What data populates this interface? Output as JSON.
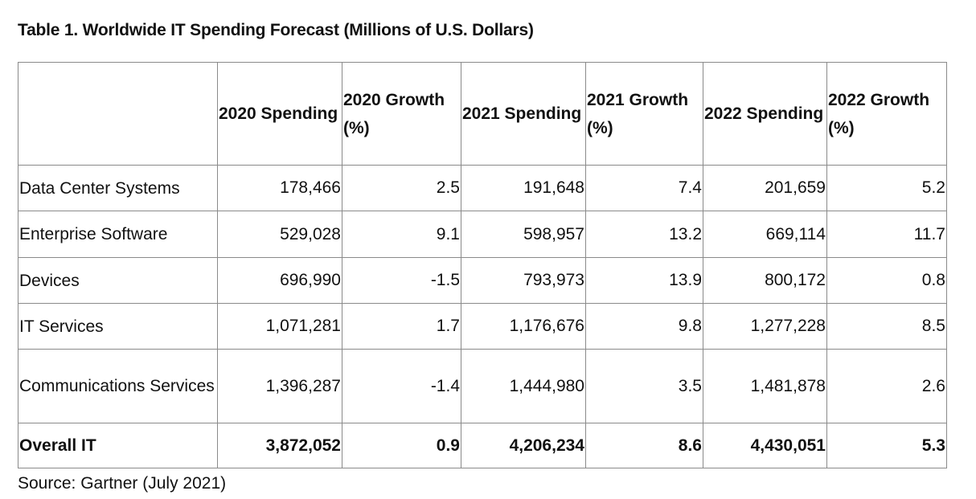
{
  "title": "Table 1. Worldwide IT Spending Forecast (Millions of U.S. Dollars)",
  "headers": [
    "",
    "2020 Spending",
    "2020 Growth (%)",
    "2021 Spending",
    "2021 Growth (%)",
    "2022 Spending",
    "2022 Growth (%)"
  ],
  "rows": [
    {
      "label": "Data Center Systems",
      "values": [
        "178,466",
        "2.5",
        "191,648",
        "7.4",
        "201,659",
        "5.2"
      ]
    },
    {
      "label": "Enterprise Software",
      "values": [
        "529,028",
        "9.1",
        "598,957",
        "13.2",
        "669,114",
        "11.7"
      ]
    },
    {
      "label": "Devices",
      "values": [
        "696,990",
        "-1.5",
        "793,973",
        "13.9",
        "800,172",
        "0.8"
      ]
    },
    {
      "label": "IT Services",
      "values": [
        "1,071,281",
        "1.7",
        "1,176,676",
        "9.8",
        "1,277,228",
        "8.5"
      ]
    },
    {
      "label": "Communications Services",
      "values": [
        "1,396,287",
        "-1.4",
        "1,444,980",
        "3.5",
        "1,481,878",
        "2.6"
      ]
    },
    {
      "label": "Overall IT",
      "values": [
        "3,872,052",
        "0.9",
        "4,206,234",
        "8.6",
        "4,430,051",
        "5.3"
      ]
    }
  ],
  "source": "Source: Gartner (July 2021)"
}
